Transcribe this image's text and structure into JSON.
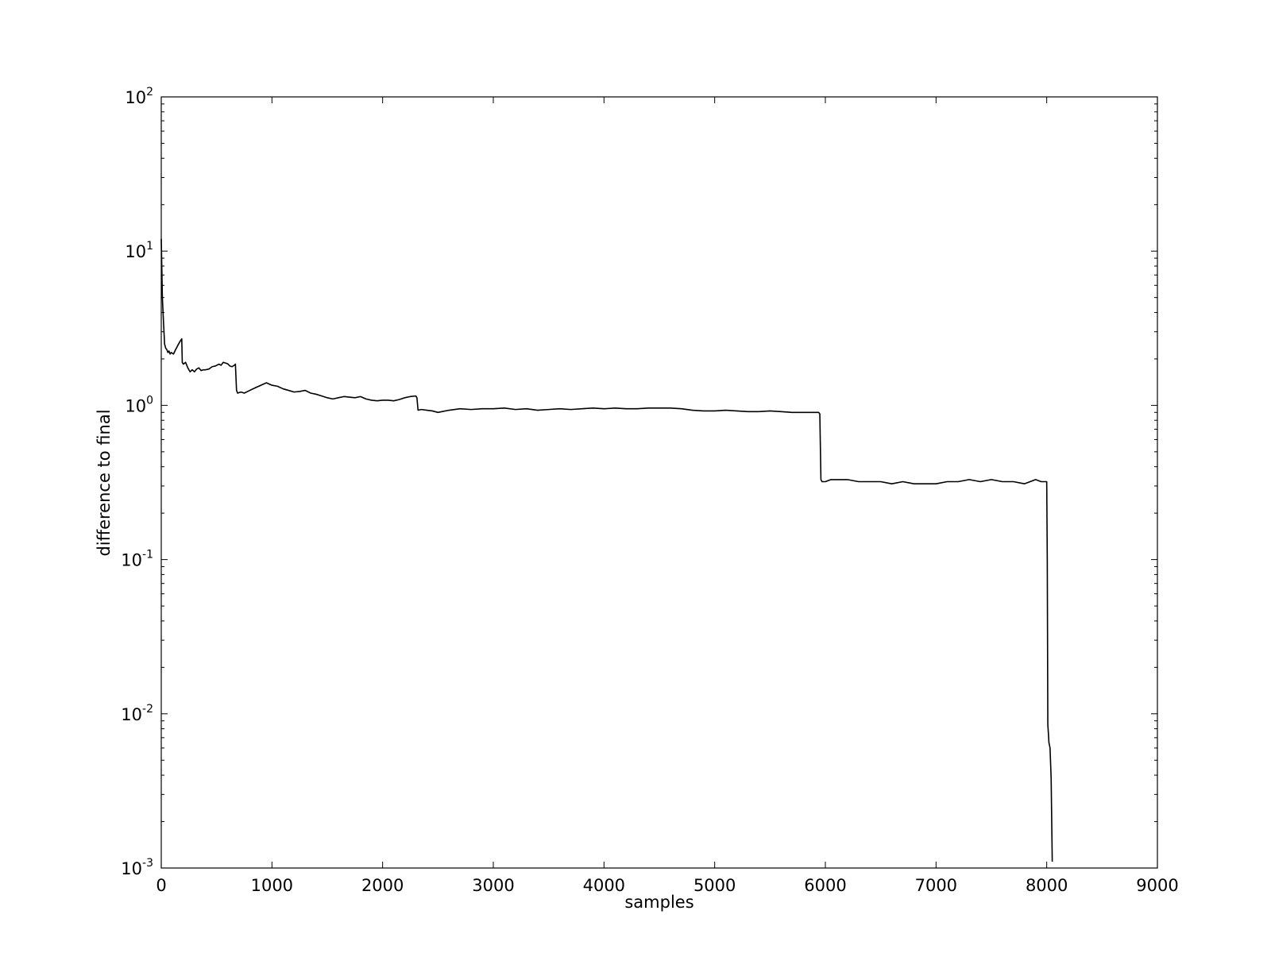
{
  "chart_data": {
    "type": "line",
    "title": "",
    "xlabel": "samples",
    "ylabel": "difference to final",
    "xlim": [
      0,
      9000
    ],
    "ylim": [
      0.001,
      100
    ],
    "yscale": "log",
    "grid": false,
    "legend": "none",
    "line_color": "#000000",
    "xticks": [
      "0",
      "1000",
      "2000",
      "3000",
      "4000",
      "5000",
      "6000",
      "7000",
      "8000",
      "9000"
    ],
    "xtick_values": [
      0,
      1000,
      2000,
      3000,
      4000,
      5000,
      6000,
      7000,
      8000,
      9000
    ],
    "yticks": [
      {
        "value": 0.001,
        "base": "10",
        "exponent": "-3"
      },
      {
        "value": 0.01,
        "base": "10",
        "exponent": "-2"
      },
      {
        "value": 0.1,
        "base": "10",
        "exponent": "-1"
      },
      {
        "value": 1,
        "base": "10",
        "exponent": "0"
      },
      {
        "value": 10,
        "base": "10",
        "exponent": "1"
      },
      {
        "value": 100,
        "base": "10",
        "exponent": "2"
      }
    ],
    "series": [
      {
        "x": [
          0,
          10,
          20,
          30,
          40,
          50,
          60,
          70,
          80,
          90,
          110,
          130,
          150,
          170,
          185,
          190,
          200,
          220,
          240,
          260,
          280,
          300,
          320,
          340,
          360,
          380,
          400,
          430,
          460,
          490,
          520,
          540,
          560,
          580,
          600,
          620,
          640,
          660,
          670,
          680,
          690,
          720,
          750,
          780,
          800,
          850,
          900,
          950,
          1000,
          1050,
          1100,
          1150,
          1200,
          1250,
          1300,
          1350,
          1400,
          1450,
          1500,
          1550,
          1600,
          1650,
          1700,
          1750,
          1800,
          1850,
          1900,
          1950,
          2000,
          2050,
          2100,
          2150,
          2200,
          2250,
          2300,
          2310,
          2320,
          2350,
          2400,
          2450,
          2500,
          2600,
          2700,
          2800,
          2900,
          3000,
          3100,
          3200,
          3300,
          3400,
          3500,
          3600,
          3700,
          3800,
          3900,
          4000,
          4100,
          4200,
          4300,
          4400,
          4500,
          4600,
          4700,
          4800,
          4900,
          5000,
          5100,
          5200,
          5300,
          5400,
          5500,
          5600,
          5700,
          5800,
          5900,
          5940,
          5950,
          5960,
          5970,
          6000,
          6050,
          6100,
          6200,
          6300,
          6400,
          6500,
          6600,
          6700,
          6800,
          6900,
          7000,
          7100,
          7200,
          7300,
          7400,
          7500,
          7600,
          7700,
          7800,
          7850,
          7900,
          7950,
          8000,
          8005,
          8010,
          8015,
          8020,
          8030,
          8040,
          8050
        ],
        "y": [
          12,
          5,
          3.5,
          2.5,
          2.35,
          2.3,
          2.2,
          2.25,
          2.15,
          2.2,
          2.15,
          2.3,
          2.45,
          2.6,
          2.7,
          1.9,
          1.85,
          1.9,
          1.75,
          1.65,
          1.7,
          1.65,
          1.72,
          1.75,
          1.68,
          1.7,
          1.7,
          1.72,
          1.78,
          1.8,
          1.85,
          1.82,
          1.9,
          1.88,
          1.86,
          1.8,
          1.78,
          1.82,
          1.85,
          1.25,
          1.2,
          1.22,
          1.2,
          1.23,
          1.25,
          1.3,
          1.35,
          1.4,
          1.35,
          1.33,
          1.28,
          1.25,
          1.22,
          1.23,
          1.25,
          1.2,
          1.18,
          1.15,
          1.12,
          1.1,
          1.12,
          1.14,
          1.13,
          1.12,
          1.14,
          1.1,
          1.08,
          1.07,
          1.08,
          1.08,
          1.07,
          1.09,
          1.12,
          1.14,
          1.15,
          1.12,
          0.93,
          0.94,
          0.93,
          0.92,
          0.9,
          0.93,
          0.95,
          0.94,
          0.95,
          0.95,
          0.96,
          0.94,
          0.95,
          0.93,
          0.94,
          0.95,
          0.94,
          0.95,
          0.96,
          0.95,
          0.96,
          0.95,
          0.95,
          0.96,
          0.96,
          0.96,
          0.95,
          0.93,
          0.92,
          0.92,
          0.93,
          0.92,
          0.91,
          0.91,
          0.92,
          0.91,
          0.9,
          0.9,
          0.9,
          0.9,
          0.88,
          0.33,
          0.32,
          0.32,
          0.33,
          0.33,
          0.33,
          0.32,
          0.32,
          0.32,
          0.31,
          0.32,
          0.31,
          0.31,
          0.31,
          0.32,
          0.32,
          0.33,
          0.32,
          0.33,
          0.32,
          0.32,
          0.31,
          0.32,
          0.33,
          0.32,
          0.32,
          0.1,
          0.0085,
          0.0075,
          0.0065,
          0.006,
          0.0038,
          0.0011
        ]
      }
    ]
  }
}
